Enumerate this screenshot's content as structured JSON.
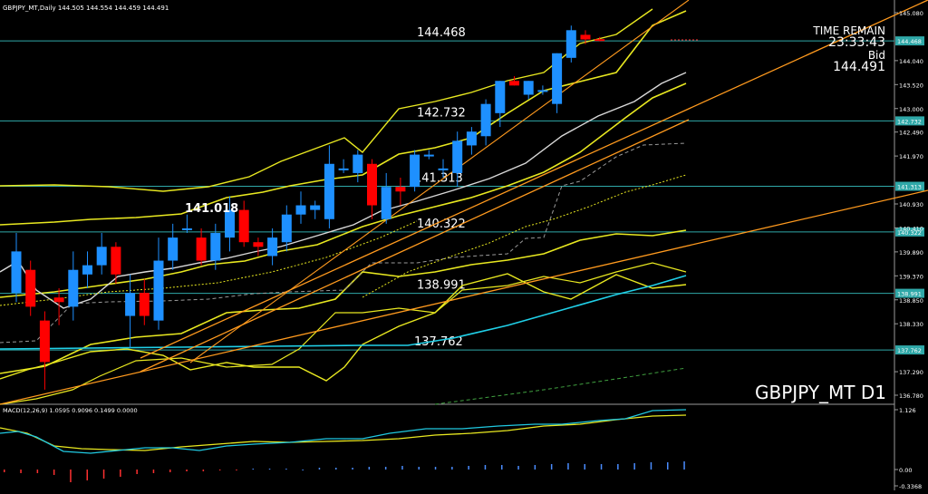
{
  "header": {
    "text": "GBPJPY_MT,Daily  144.505 144.554 144.459 144.491"
  },
  "symbol_label": "GBPJPY_MT D1",
  "timer": {
    "label": "TIME REMAIN",
    "value": "23:33:43",
    "bid_label": "Bid",
    "bid_value": "144.491"
  },
  "colors": {
    "background": "#000000",
    "bull": "#1e90ff",
    "bear": "#ff0000",
    "hline": "#2fa8a8",
    "bands": "#e8e820",
    "trend": "#ff9a1e",
    "ma_white": "#d8d8d8",
    "macd_main": "#20c8e0",
    "macd_signal": "#e8e820",
    "cyan_ma": "#20d0e8",
    "hist_pos": "#4a8cff",
    "hist_neg": "#ff3030"
  },
  "price_axis": {
    "ticks": [
      "145.080",
      "144.468",
      "144.040",
      "143.520",
      "143.000",
      "142.732",
      "142.490",
      "141.970",
      "141.313",
      "140.930",
      "140.410",
      "140.322",
      "139.890",
      "139.370",
      "138.991",
      "138.850",
      "138.330",
      "137.762",
      "137.290",
      "136.780"
    ]
  },
  "macd_panel": {
    "label": "MACD(12,26,9) 1.0595 0.9096 0.1499 0.0000",
    "ticks": [
      "1.126",
      "0.00",
      "-0.3368"
    ]
  },
  "chart_data": {
    "type": "candlestick",
    "symbol": "GBPJPY_MT",
    "timeframe": "Daily",
    "ohlc_header": {
      "open": 144.505,
      "high": 144.554,
      "low": 144.459,
      "close": 144.491
    },
    "ylim": [
      136.6,
      145.3
    ],
    "levels": [
      {
        "value": 144.468,
        "label": "144.468"
      },
      {
        "value": 142.732,
        "label": "142.732"
      },
      {
        "value": 141.313,
        "label": "141.313"
      },
      {
        "value": 140.322,
        "label": "140.322"
      },
      {
        "value": 138.991,
        "label": "138.991"
      },
      {
        "value": 137.762,
        "label": "137.762"
      }
    ],
    "annotation": {
      "text": "141.018",
      "value": 141.018
    },
    "candles": [
      {
        "o": 139.0,
        "h": 140.3,
        "l": 138.8,
        "c": 139.9
      },
      {
        "o": 139.5,
        "h": 139.7,
        "l": 138.5,
        "c": 138.7
      },
      {
        "o": 138.4,
        "h": 138.6,
        "l": 136.9,
        "c": 137.5
      },
      {
        "o": 138.9,
        "h": 139.1,
        "l": 138.3,
        "c": 138.8
      },
      {
        "o": 138.7,
        "h": 139.9,
        "l": 138.4,
        "c": 139.5
      },
      {
        "o": 139.4,
        "h": 139.9,
        "l": 139.1,
        "c": 139.6
      },
      {
        "o": 139.6,
        "h": 140.3,
        "l": 139.4,
        "c": 140.0
      },
      {
        "o": 140.0,
        "h": 140.1,
        "l": 139.2,
        "c": 139.4
      },
      {
        "o": 138.5,
        "h": 139.4,
        "l": 137.8,
        "c": 139.0
      },
      {
        "o": 139.0,
        "h": 139.3,
        "l": 138.3,
        "c": 138.5
      },
      {
        "o": 138.4,
        "h": 140.2,
        "l": 138.2,
        "c": 139.7
      },
      {
        "o": 139.7,
        "h": 140.5,
        "l": 139.5,
        "c": 140.2
      },
      {
        "o": 140.4,
        "h": 140.7,
        "l": 140.3,
        "c": 140.4
      },
      {
        "o": 140.2,
        "h": 140.4,
        "l": 139.6,
        "c": 139.7
      },
      {
        "o": 139.7,
        "h": 140.5,
        "l": 139.5,
        "c": 140.3
      },
      {
        "o": 140.2,
        "h": 141.1,
        "l": 139.9,
        "c": 140.8
      },
      {
        "o": 140.8,
        "h": 141.0,
        "l": 140.0,
        "c": 140.1
      },
      {
        "o": 140.1,
        "h": 140.2,
        "l": 139.8,
        "c": 140.0
      },
      {
        "o": 139.8,
        "h": 140.4,
        "l": 139.6,
        "c": 140.2
      },
      {
        "o": 140.1,
        "h": 140.9,
        "l": 139.9,
        "c": 140.7
      },
      {
        "o": 140.7,
        "h": 141.2,
        "l": 140.5,
        "c": 140.9
      },
      {
        "o": 140.8,
        "h": 141.0,
        "l": 140.6,
        "c": 140.9
      },
      {
        "o": 140.6,
        "h": 142.2,
        "l": 140.4,
        "c": 141.8
      },
      {
        "o": 141.7,
        "h": 141.9,
        "l": 141.6,
        "c": 141.7
      },
      {
        "o": 141.6,
        "h": 142.1,
        "l": 141.4,
        "c": 142.0
      },
      {
        "o": 141.8,
        "h": 141.9,
        "l": 140.6,
        "c": 140.9
      },
      {
        "o": 140.6,
        "h": 141.6,
        "l": 140.5,
        "c": 141.3
      },
      {
        "o": 141.3,
        "h": 141.5,
        "l": 140.9,
        "c": 141.2
      },
      {
        "o": 141.3,
        "h": 142.1,
        "l": 141.2,
        "c": 142.0
      },
      {
        "o": 142.0,
        "h": 142.1,
        "l": 141.9,
        "c": 142.0
      },
      {
        "o": 141.7,
        "h": 141.9,
        "l": 141.5,
        "c": 141.7
      },
      {
        "o": 141.6,
        "h": 142.5,
        "l": 141.3,
        "c": 142.3
      },
      {
        "o": 142.2,
        "h": 142.6,
        "l": 142.0,
        "c": 142.5
      },
      {
        "o": 142.4,
        "h": 143.2,
        "l": 142.2,
        "c": 143.1
      },
      {
        "o": 142.9,
        "h": 143.6,
        "l": 142.6,
        "c": 143.6
      },
      {
        "o": 143.6,
        "h": 143.7,
        "l": 143.5,
        "c": 143.5
      },
      {
        "o": 143.3,
        "h": 143.6,
        "l": 143.2,
        "c": 143.6
      },
      {
        "o": 143.4,
        "h": 143.5,
        "l": 143.3,
        "c": 143.4
      },
      {
        "o": 143.1,
        "h": 144.2,
        "l": 142.9,
        "c": 144.2
      },
      {
        "o": 144.1,
        "h": 144.8,
        "l": 144.0,
        "c": 144.7
      },
      {
        "o": 144.6,
        "h": 144.7,
        "l": 144.4,
        "c": 144.5
      },
      {
        "o": 144.505,
        "h": 144.554,
        "l": 144.459,
        "c": 144.491
      }
    ]
  }
}
